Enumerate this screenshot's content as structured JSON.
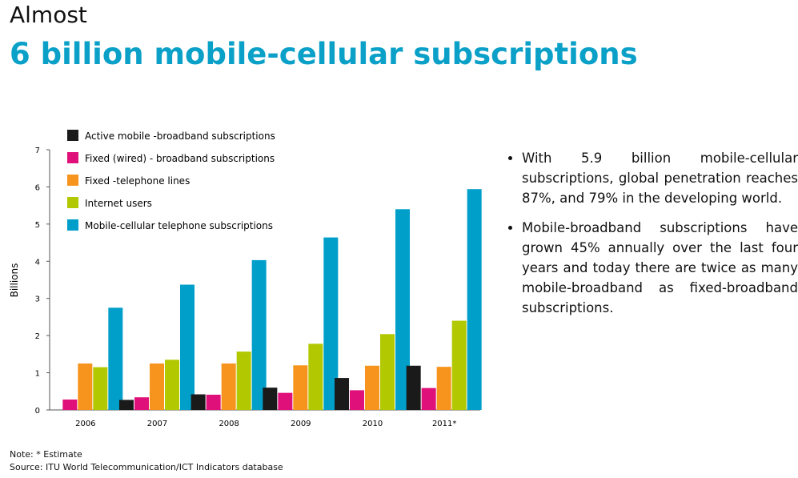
{
  "header": {
    "pre": "Almost",
    "title": "6 billion mobile-cellular subscriptions"
  },
  "bullets": [
    "With 5.9 billion mobile-cellular subscriptions, global penetration reaches 87%, and 79% in the developing world.",
    "Mobile-broadband subscriptions have grown 45% annually over the last four years and today there are twice as many mobile-broadband as fixed-broadband subscriptions."
  ],
  "footer": {
    "note": "Note: * Estimate",
    "source": "Source: ITU World Telecommunication/ICT Indicators database"
  },
  "chart_data": {
    "type": "bar",
    "title": "",
    "xlabel": "",
    "ylabel": "Billions",
    "ylim": [
      0,
      7
    ],
    "yticks": [
      "0",
      "1",
      "2",
      "3",
      "4",
      "5",
      "6",
      "7"
    ],
    "categories": [
      "2006",
      "2007",
      "2008",
      "2009",
      "2010",
      "2011*"
    ],
    "legend_position": "top-left",
    "series": [
      {
        "name": "Active mobile -broadband subscriptions",
        "color": "#1a1a1a",
        "values": [
          0,
          0.27,
          0.42,
          0.6,
          0.86,
          1.19
        ]
      },
      {
        "name": "Fixed (wired) - broadband subscriptions",
        "color": "#e0107a",
        "values": [
          0.28,
          0.34,
          0.41,
          0.46,
          0.53,
          0.59
        ]
      },
      {
        "name": "Fixed -telephone lines",
        "color": "#f7941d",
        "values": [
          1.25,
          1.25,
          1.25,
          1.2,
          1.19,
          1.16
        ]
      },
      {
        "name": "Internet users",
        "color": "#b2c800",
        "values": [
          1.15,
          1.35,
          1.57,
          1.78,
          2.04,
          2.4
        ]
      },
      {
        "name": "Mobile-cellular telephone subscriptions",
        "color": "#009fca",
        "values": [
          2.75,
          3.37,
          4.03,
          4.64,
          5.4,
          5.94
        ]
      }
    ]
  }
}
